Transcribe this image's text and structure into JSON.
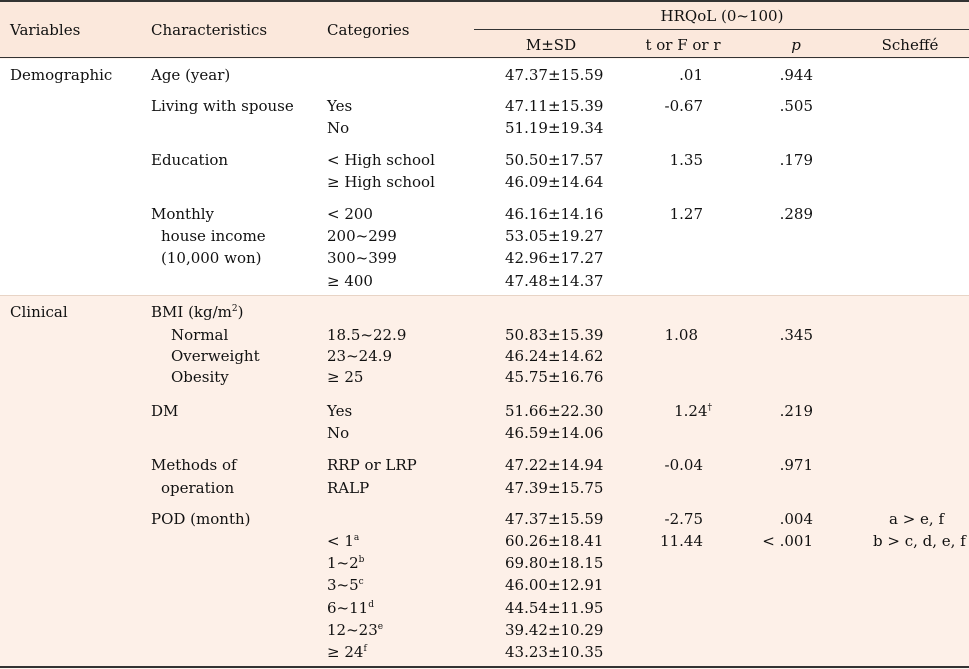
{
  "header": {
    "variables": "Variables",
    "characteristics": "Characteristics",
    "categories": "Categories",
    "hrqol": "HRQoL (0~100)",
    "msd": "M±SD",
    "tfr": "t or F or r",
    "p": "p",
    "scheffe": "Scheffé"
  },
  "demo": {
    "variable": "Demographic",
    "age": {
      "char": "Age (year)",
      "msd": "47.37±15.59",
      "stat": ".01",
      "p": ".944"
    },
    "spouse": {
      "char": "Living with spouse",
      "cat1": "Yes",
      "msd1": "47.11±15.39",
      "cat2": "No",
      "msd2": "51.19±19.34",
      "stat": "-0.67",
      "p": ".505"
    },
    "education": {
      "char": "Education",
      "cat1": "< High school",
      "msd1": "50.50±17.57",
      "cat2": "≥ High school",
      "msd2": "46.09±14.64",
      "stat": "1.35",
      "p": ".179"
    },
    "income": {
      "char1": "Monthly",
      "char2": "house income",
      "char3": "(10,000 won)",
      "cat1": "< 200",
      "msd1": "46.16±14.16",
      "cat2": "200~299",
      "msd2": "53.05±19.27",
      "cat3": "300~399",
      "msd3": "42.96±17.27",
      "cat4": "≥ 400",
      "msd4": "47.48±14.37",
      "stat": "1.27",
      "p": ".289"
    }
  },
  "clin": {
    "variable": "Clinical",
    "bmi": {
      "char": "BMI (kg/m",
      "char_sup": "2",
      "char_end": ")",
      "sub1": "Normal",
      "cat1": "18.5~22.9",
      "msd1": "50.83±15.39",
      "sub2": "Overweight",
      "cat2": "23~24.9",
      "msd2": "46.24±14.62",
      "sub3": "Obesity",
      "cat3": "≥ 25",
      "msd3": "45.75±16.76",
      "stat": "1.08",
      "p": ".345"
    },
    "dm": {
      "char": "DM",
      "cat1": "Yes",
      "msd1": "51.66±22.30",
      "cat2": "No",
      "msd2": "46.59±14.06",
      "stat": "1.24",
      "stat_sup": "†",
      "p": ".219"
    },
    "methods": {
      "char1": "Methods of",
      "char2": "operation",
      "cat1": "RRP or LRP",
      "msd1": "47.22±14.94",
      "cat2": "RALP",
      "msd2": "47.39±15.75",
      "stat": "-0.04",
      "p": ".971"
    },
    "pod": {
      "char": "POD (month)",
      "msd0": "47.37±15.59",
      "stat1": "-2.75",
      "p1": ".004",
      "sch1": "a > e,  f",
      "stat2": "11.44",
      "p2": "< .001",
      "sch2": "b > c, d, e, f",
      "rows": [
        {
          "cat": "< 1",
          "sup": "a",
          "msd": "60.26±18.41"
        },
        {
          "cat": "1~2",
          "sup": "b",
          "msd": "69.80±18.15"
        },
        {
          "cat": "3~5",
          "sup": "c",
          "msd": "46.00±12.91"
        },
        {
          "cat": "6~11",
          "sup": "d",
          "msd": "44.54±11.95"
        },
        {
          "cat": "12~23",
          "sup": "e",
          "msd": "39.42±10.29"
        },
        {
          "cat": "≥ 24",
          "sup": "f",
          "msd": "43.23±10.35"
        }
      ]
    }
  }
}
